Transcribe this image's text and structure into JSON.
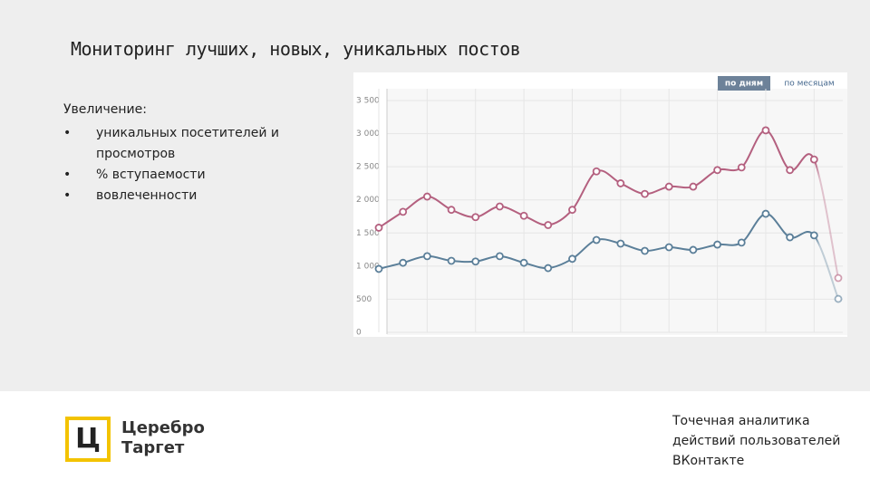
{
  "title": "Мониторинг лучших, новых, уникальных постов",
  "intro": "Увеличение:",
  "bullets": [
    "уникальных посетителей и просмотров",
    "% вступаемости",
    "вовлеченности"
  ],
  "logo": {
    "mark": "Ц",
    "lines": [
      "Церебро",
      "Таргет"
    ]
  },
  "footer": [
    "Точечная аналитика",
    "действий пользователей",
    "ВКонтакте"
  ],
  "chart_data": {
    "type": "line",
    "buttons": [
      "по дням",
      "по месяцам"
    ],
    "categories": [
      null,
      null,
      null,
      null,
      null,
      null,
      null,
      null,
      null,
      null,
      null,
      null,
      null,
      null,
      null,
      null,
      null,
      null,
      null,
      null
    ],
    "series": [
      {
        "color": "#b4607f",
        "values": [
          1580,
          1820,
          2050,
          1850,
          1740,
          1900,
          1760,
          1620,
          1850,
          2430,
          2250,
          2090,
          2200,
          2200,
          2450,
          2490,
          3050,
          2450,
          2610,
          820
        ]
      },
      {
        "color": "#5b7f99",
        "values": [
          958,
          1050,
          1150,
          1080,
          1070,
          1150,
          1050,
          970,
          1110,
          1395,
          1340,
          1230,
          1285,
          1245,
          1325,
          1355,
          1790,
          1435,
          1465,
          505
        ]
      }
    ],
    "ylim": [
      0,
      3500
    ],
    "yticks": [
      0,
      500,
      {
        "value": 1000,
        "label": "1 000"
      },
      {
        "value": 1500,
        "label": "1 500"
      },
      {
        "value": 2000,
        "label": "2 000"
      },
      {
        "value": 2500,
        "label": "2 500"
      },
      {
        "value": 3000,
        "label": "3 000"
      },
      {
        "value": 3500,
        "label": "3 500"
      }
    ],
    "grid": true
  }
}
